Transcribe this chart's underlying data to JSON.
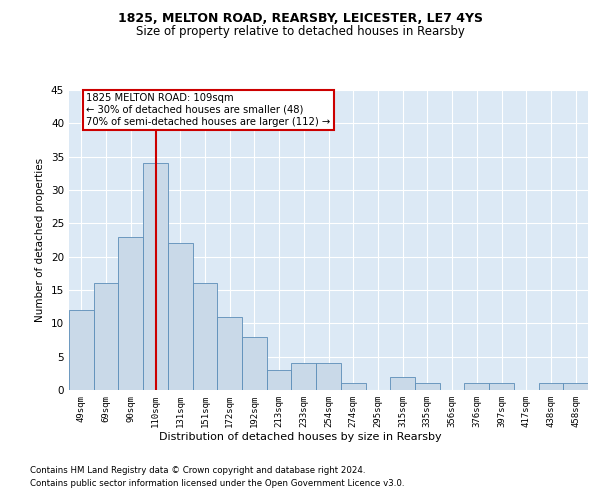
{
  "title1": "1825, MELTON ROAD, REARSBY, LEICESTER, LE7 4YS",
  "title2": "Size of property relative to detached houses in Rearsby",
  "xlabel": "Distribution of detached houses by size in Rearsby",
  "ylabel": "Number of detached properties",
  "footnote1": "Contains HM Land Registry data © Crown copyright and database right 2024.",
  "footnote2": "Contains public sector information licensed under the Open Government Licence v3.0.",
  "annotation_line1": "1825 MELTON ROAD: 109sqm",
  "annotation_line2": "← 30% of detached houses are smaller (48)",
  "annotation_line3": "70% of semi-detached houses are larger (112) →",
  "bar_color": "#c9d9e8",
  "bar_edge_color": "#5b8db8",
  "vline_color": "#cc0000",
  "annotation_box_color": "#cc0000",
  "background_color": "#ffffff",
  "plot_bg_color": "#dce9f5",
  "grid_color": "#ffffff",
  "categories": [
    "49sqm",
    "69sqm",
    "90sqm",
    "110sqm",
    "131sqm",
    "151sqm",
    "172sqm",
    "192sqm",
    "213sqm",
    "233sqm",
    "254sqm",
    "274sqm",
    "295sqm",
    "315sqm",
    "335sqm",
    "356sqm",
    "376sqm",
    "397sqm",
    "417sqm",
    "438sqm",
    "458sqm"
  ],
  "values": [
    12,
    16,
    23,
    34,
    22,
    16,
    11,
    8,
    3,
    4,
    4,
    1,
    0,
    2,
    1,
    0,
    1,
    1,
    0,
    1,
    1
  ],
  "vline_x": 3,
  "ylim": [
    0,
    45
  ],
  "yticks": [
    0,
    5,
    10,
    15,
    20,
    25,
    30,
    35,
    40,
    45
  ]
}
